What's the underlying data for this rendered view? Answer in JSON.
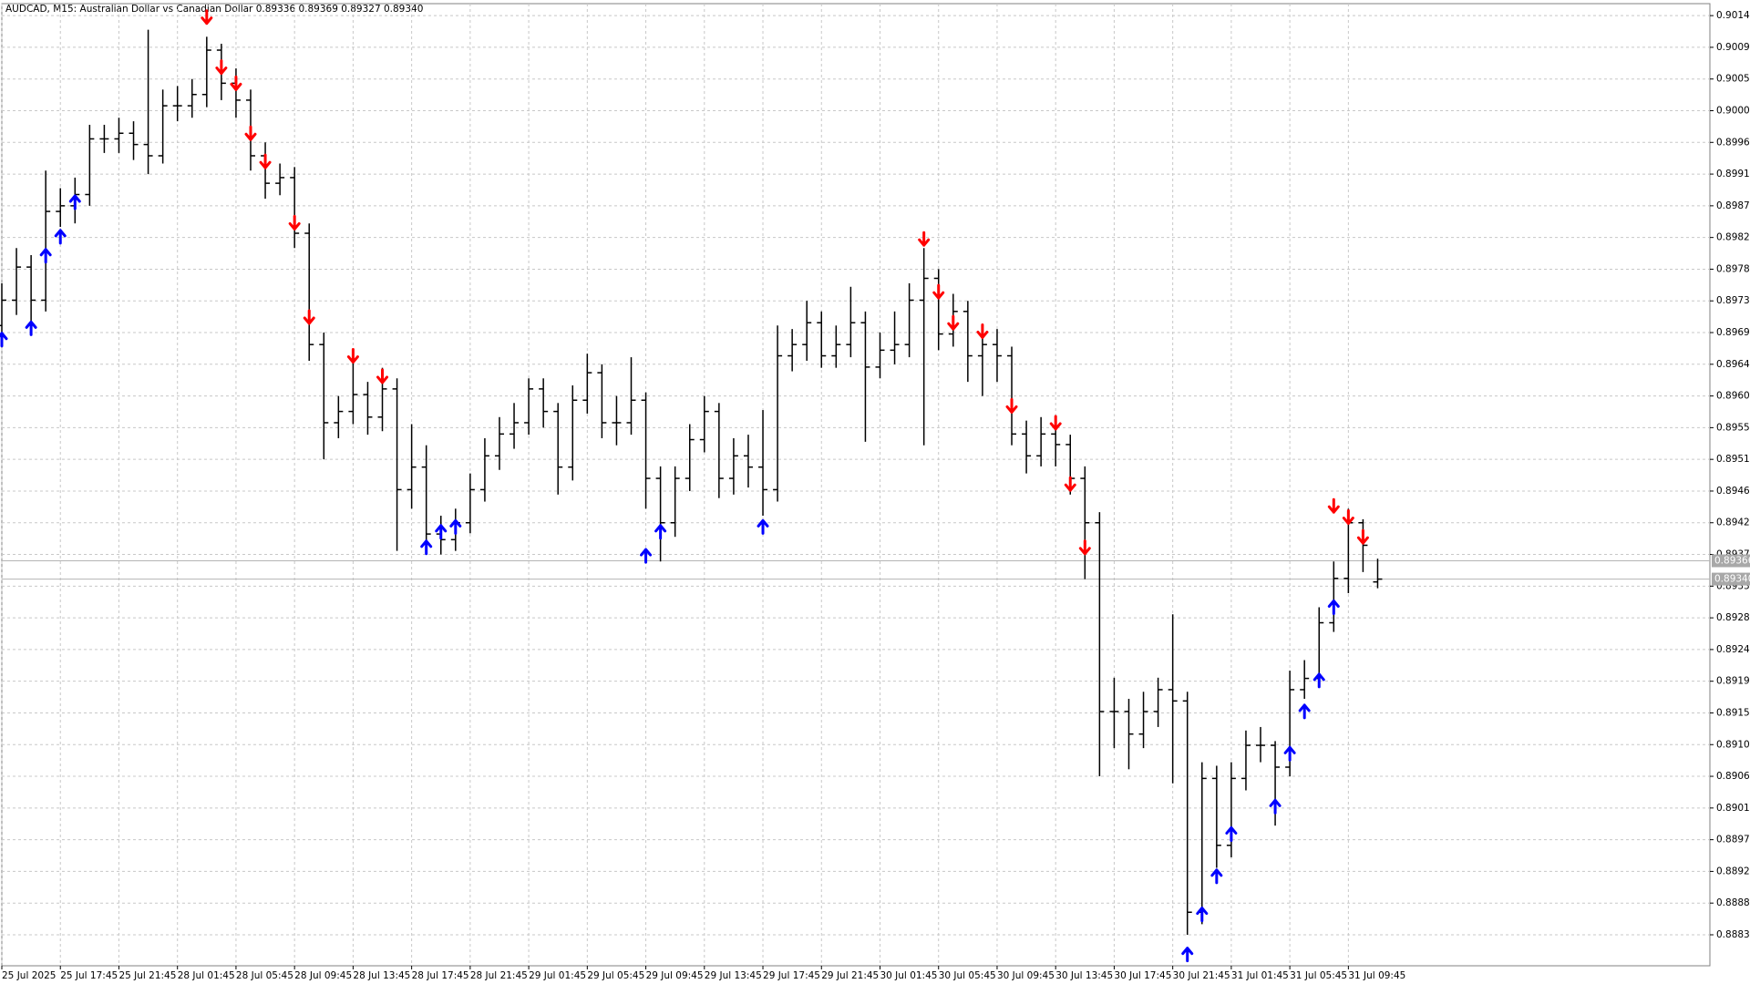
{
  "chart_data": {
    "type": "ohlc",
    "title": "AUDCAD, M15:  Australian Dollar vs Canadian Dollar  0.89336 0.89369 0.89327 0.89340",
    "open": [
      0.897,
      0.89736,
      0.89783,
      0.89736,
      0.89862,
      0.8987,
      0.89886,
      0.89965,
      0.89965,
      0.89973,
      0.89957,
      0.89941,
      0.90012,
      0.90012,
      0.90028,
      0.90091,
      0.90044,
      0.9002,
      0.89941,
      0.89902,
      0.8991,
      0.89831,
      0.89673,
      0.89562,
      0.89578,
      0.89602,
      0.8957,
      0.8961,
      0.89467,
      0.89499,
      0.89404,
      0.89396,
      0.8942,
      0.89467,
      0.89515,
      0.89546,
      0.89562,
      0.8961,
      0.89578,
      0.89499,
      0.89594,
      0.89633,
      0.89562,
      0.89562,
      0.89594,
      0.89483,
      0.8942,
      0.89483,
      0.89538,
      0.89578,
      0.89483,
      0.89515,
      0.89499,
      0.89467,
      0.89657,
      0.89673,
      0.89704,
      0.89657,
      0.89673,
      0.89704,
      0.89641,
      0.89665,
      0.89673,
      0.89736,
      0.89767,
      0.89688,
      0.8972,
      0.89657,
      0.89673,
      0.89657,
      0.89546,
      0.89515,
      0.89546,
      0.89531,
      0.89483,
      0.8942,
      0.89152,
      0.89152,
      0.8912,
      0.89152,
      0.89183,
      0.89167,
      0.88867,
      0.89057,
      0.88962,
      0.89057,
      0.89104,
      0.89104,
      0.89073,
      0.89183,
      0.89199,
      0.89278,
      0.89341,
      0.8942,
      0.89336
    ],
    "high": [
      0.8976,
      0.8981,
      0.898,
      0.8992,
      0.89895,
      0.8991,
      0.89985,
      0.89985,
      0.89995,
      0.8999,
      0.9012,
      0.90035,
      0.9004,
      0.9005,
      0.9011,
      0.901,
      0.90065,
      0.90035,
      0.8996,
      0.8993,
      0.89925,
      0.89845,
      0.8969,
      0.896,
      0.8965,
      0.8962,
      0.8964,
      0.89625,
      0.8956,
      0.8953,
      0.8943,
      0.8944,
      0.8949,
      0.8954,
      0.8957,
      0.8959,
      0.89625,
      0.89625,
      0.8959,
      0.89615,
      0.8966,
      0.89645,
      0.896,
      0.89655,
      0.89605,
      0.895,
      0.895,
      0.8956,
      0.896,
      0.8959,
      0.8954,
      0.89545,
      0.8958,
      0.897,
      0.89695,
      0.89735,
      0.8972,
      0.897,
      0.89755,
      0.8972,
      0.8969,
      0.8972,
      0.8976,
      0.8981,
      0.8978,
      0.89745,
      0.89735,
      0.897,
      0.89695,
      0.8967,
      0.89565,
      0.8957,
      0.8956,
      0.89545,
      0.895,
      0.89435,
      0.892,
      0.8917,
      0.8918,
      0.892,
      0.8929,
      0.8918,
      0.8908,
      0.89075,
      0.8908,
      0.89125,
      0.8913,
      0.8911,
      0.8921,
      0.89225,
      0.893,
      0.89365,
      0.8944,
      0.89425,
      0.89369
    ],
    "low": [
      0.8968,
      0.89715,
      0.8969,
      0.8972,
      0.8984,
      0.89845,
      0.8987,
      0.89945,
      0.89945,
      0.89935,
      0.89915,
      0.8993,
      0.8999,
      0.89995,
      0.9001,
      0.9002,
      0.89995,
      0.8992,
      0.8988,
      0.89885,
      0.8981,
      0.8965,
      0.8951,
      0.8954,
      0.8956,
      0.89545,
      0.8955,
      0.8938,
      0.8944,
      0.8938,
      0.89375,
      0.8938,
      0.89405,
      0.8945,
      0.89495,
      0.89525,
      0.89545,
      0.89555,
      0.8946,
      0.8948,
      0.89575,
      0.8954,
      0.8953,
      0.89545,
      0.8944,
      0.89365,
      0.894,
      0.89465,
      0.8952,
      0.89455,
      0.8946,
      0.8947,
      0.8943,
      0.8945,
      0.89635,
      0.8965,
      0.8964,
      0.8964,
      0.89655,
      0.89535,
      0.89625,
      0.89645,
      0.89655,
      0.8953,
      0.89665,
      0.8967,
      0.8962,
      0.896,
      0.8962,
      0.8953,
      0.8949,
      0.895,
      0.895,
      0.8946,
      0.8934,
      0.8906,
      0.891,
      0.8907,
      0.891,
      0.8913,
      0.8905,
      0.88835,
      0.8885,
      0.8893,
      0.88945,
      0.8904,
      0.8908,
      0.8899,
      0.8906,
      0.8917,
      0.8919,
      0.89265,
      0.8932,
      0.8935,
      0.89327
    ],
    "close": [
      0.89736,
      0.89783,
      0.89736,
      0.89862,
      0.8987,
      0.89886,
      0.89965,
      0.89965,
      0.89973,
      0.89957,
      0.89941,
      0.90012,
      0.90012,
      0.90028,
      0.90091,
      0.90044,
      0.9002,
      0.89941,
      0.89902,
      0.8991,
      0.89831,
      0.89673,
      0.89562,
      0.89578,
      0.89602,
      0.8957,
      0.8961,
      0.89467,
      0.89499,
      0.89404,
      0.89396,
      0.8942,
      0.89467,
      0.89515,
      0.89546,
      0.89562,
      0.8961,
      0.89578,
      0.89499,
      0.89594,
      0.89633,
      0.89562,
      0.89562,
      0.89594,
      0.89483,
      0.8942,
      0.89483,
      0.89538,
      0.89578,
      0.89483,
      0.89515,
      0.89499,
      0.89467,
      0.89657,
      0.89673,
      0.89704,
      0.89657,
      0.89673,
      0.89704,
      0.89641,
      0.89665,
      0.89673,
      0.89736,
      0.89767,
      0.89688,
      0.8972,
      0.89657,
      0.89673,
      0.89657,
      0.89546,
      0.89515,
      0.89546,
      0.89531,
      0.89483,
      0.8942,
      0.89152,
      0.89152,
      0.8912,
      0.89152,
      0.89183,
      0.89167,
      0.88867,
      0.89057,
      0.88962,
      0.89057,
      0.89104,
      0.89104,
      0.89073,
      0.89183,
      0.89199,
      0.89278,
      0.89341,
      0.8942,
      0.89388,
      0.8934
    ],
    "bar_color": "#000000",
    "sell_signals": {
      "color": "#ff0000",
      "x": [
        14,
        15,
        16,
        17,
        18,
        20,
        21,
        24,
        26,
        63,
        64,
        65,
        67,
        69,
        72,
        73,
        74,
        91,
        92,
        93
      ],
      "values": [
        0.90138,
        0.90067,
        0.90044,
        0.89973,
        0.89933,
        0.89846,
        0.89712,
        0.89657,
        0.89628,
        0.89823,
        0.89748,
        0.89704,
        0.89692,
        0.89586,
        0.89562,
        0.89475,
        0.89385,
        0.89444,
        0.89428,
        0.894
      ]
    },
    "buy_signals": {
      "color": "#0000ff",
      "x": [
        0,
        2,
        3,
        4,
        5,
        29,
        30,
        31,
        44,
        45,
        52,
        81,
        82,
        83,
        84,
        87,
        88,
        89,
        90,
        91
      ],
      "values": [
        0.8968,
        0.89696,
        0.89799,
        0.89826,
        0.89875,
        0.89385,
        0.89407,
        0.89414,
        0.89373,
        0.89407,
        0.89414,
        0.88807,
        0.88864,
        0.88918,
        0.88978,
        0.89017,
        0.89092,
        0.89152,
        0.89196,
        0.893
      ]
    },
    "price_lines": [
      0.89366,
      {
        "value": 0.8934,
        "label": "0.89340"
      }
    ],
    "xlim": [
      0,
      116.7
    ],
    "xticks": [
      {
        "value": 0,
        "label": "25 Jul 2025"
      },
      {
        "value": 4,
        "label": "25 Jul 17:45"
      },
      {
        "value": 8,
        "label": "25 Jul 21:45"
      },
      {
        "value": 12,
        "label": "28 Jul 01:45"
      },
      {
        "value": 16,
        "label": "28 Jul 05:45"
      },
      {
        "value": 20,
        "label": "28 Jul 09:45"
      },
      {
        "value": 24,
        "label": "28 Jul 13:45"
      },
      {
        "value": 28,
        "label": "28 Jul 17:45"
      },
      {
        "value": 32,
        "label": "28 Jul 21:45"
      },
      {
        "value": 36,
        "label": "29 Jul 01:45"
      },
      {
        "value": 40,
        "label": "29 Jul 05:45"
      },
      {
        "value": 44,
        "label": "29 Jul 09:45"
      },
      {
        "value": 48,
        "label": "29 Jul 13:45"
      },
      {
        "value": 52,
        "label": "29 Jul 17:45"
      },
      {
        "value": 56,
        "label": "29 Jul 21:45"
      },
      {
        "value": 60,
        "label": "30 Jul 01:45"
      },
      {
        "value": 64,
        "label": "30 Jul 05:45"
      },
      {
        "value": 68,
        "label": "30 Jul 09:45"
      },
      {
        "value": 72,
        "label": "30 Jul 13:45"
      },
      {
        "value": 76,
        "label": "30 Jul 17:45"
      },
      {
        "value": 80,
        "label": "30 Jul 21:45"
      },
      {
        "value": 84,
        "label": "31 Jul 01:45"
      },
      {
        "value": 88,
        "label": "31 Jul 05:45"
      },
      {
        "value": 92,
        "label": "31 Jul 09:45"
      }
    ],
    "ylim": [
      0.88791,
      0.90157
    ],
    "yticks": [
      0.88835,
      {
        "value": 0.8888,
        "label": "0.88880"
      },
      0.88925,
      {
        "value": 0.8897,
        "label": "0.88970"
      },
      0.89015,
      {
        "value": 0.8906,
        "label": "0.89060"
      },
      0.89105,
      {
        "value": 0.8915,
        "label": "0.89150"
      },
      0.89195,
      {
        "value": 0.8924,
        "label": "0.89240"
      },
      0.89285,
      {
        "value": 0.8933,
        "label": "0.89330"
      },
      0.89375,
      {
        "value": 0.8942,
        "label": "0.89420"
      },
      0.89465,
      {
        "value": 0.8951,
        "label": "0.89510"
      },
      0.89555,
      {
        "value": 0.896,
        "label": "0.89600"
      },
      0.89645,
      {
        "value": 0.8969,
        "label": "0.89690"
      },
      0.89735,
      {
        "value": 0.8978,
        "label": "0.89780"
      },
      0.89825,
      {
        "value": 0.8987,
        "label": "0.89870"
      },
      0.89915,
      {
        "value": 0.8996,
        "label": "0.89960"
      },
      0.90005,
      {
        "value": 0.9005,
        "label": "0.90050"
      },
      0.90095,
      {
        "value": 0.9014,
        "label": "0.90140"
      }
    ],
    "grid": true
  }
}
